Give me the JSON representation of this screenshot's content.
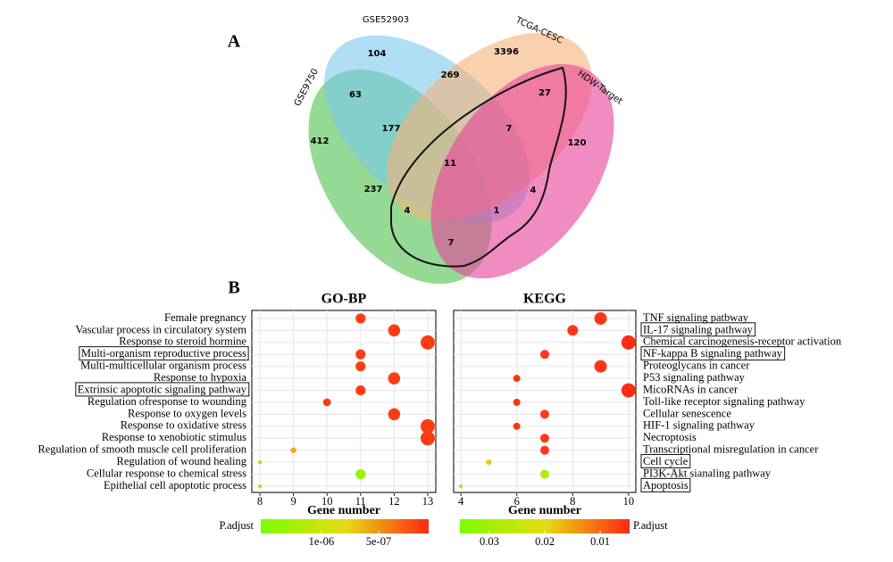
{
  "panel_labels": [
    "A",
    "B"
  ],
  "chart_data": [
    {
      "type": "venn",
      "sets": [
        {
          "name": "GSE9750",
          "color": "#4cc04c"
        },
        {
          "name": "GSE52903",
          "color": "#7cc8ee"
        },
        {
          "name": "TCGA-CESC",
          "color": "#f5b27a"
        },
        {
          "name": "HDW-Target",
          "color": "#e8409a"
        }
      ],
      "values": [
        412,
        104,
        3396,
        120,
        63,
        269,
        27,
        177,
        7,
        11,
        237,
        4,
        4,
        1,
        7
      ]
    },
    {
      "type": "dot",
      "title": "GO-BP",
      "xlabel": "Gene number",
      "categories": [
        "Female pregnancy",
        "Vascular process in circulatory system",
        "Response to steroid hormine",
        "Multi-organism reproductive process",
        "Multi-multicellular organism process",
        "Response to hypoxia",
        "Extrinsic apoptotic signaling pathway",
        "Regulation ofresponse to wounding",
        "Response to oxygen levels",
        "Response to oxidative stress",
        "Response to xenobiotic stimulus",
        "Regulation of smooth muscle cell proliferation",
        "Regulation of wound healing",
        "Cellular response to chemical stress",
        "Epithelial cell apoptotic process"
      ],
      "values": [
        11,
        12,
        13,
        11,
        11,
        12,
        11,
        10,
        12,
        13,
        13,
        9,
        8,
        11,
        8
      ],
      "color_values": [
        1.5e-07,
        1.5e-07,
        1.5e-07,
        1.5e-07,
        1.5e-07,
        1.5e-07,
        1.5e-07,
        1.5e-07,
        1.5e-07,
        1.5e-07,
        1.5e-07,
        6e-07,
        1.4e-06,
        1.3e-06,
        1.4e-06
      ],
      "boxed": [
        3,
        6
      ],
      "xlim": [
        7.76,
        13.24
      ],
      "xticks": [
        8,
        9,
        10,
        11,
        12,
        13
      ],
      "colorbar": {
        "label": "P.adjust",
        "lim": [
          1.53e-06,
          6.3e-08
        ],
        "ticks": [
          {
            "value": 1e-06,
            "label": "1e-06"
          },
          {
            "value": 5e-07,
            "label": "5e-07"
          }
        ]
      }
    },
    {
      "type": "dot",
      "title": "KEGG",
      "xlabel": "Gene number",
      "categories": [
        "TNF signaling patbway",
        "IL-17 signaling pathway",
        "Chemical carcinogenesis-receptor activation",
        "NF-kappa B signaling pathway",
        "Proteoglycans in cancer",
        "P53 signaling pathway",
        "MicoRNAs in cancer",
        "Toll-like receptor signaling pathway",
        "Cellular senescence",
        "HIF-1 signaling pathway",
        "Necroptosis",
        "Transcriptional misregulation in cancer",
        "Cell cycle",
        "PI3K-Akt sianaling pathway",
        "Apoptosis"
      ],
      "values": [
        9,
        8,
        10,
        7,
        9,
        6,
        10,
        6,
        7,
        6,
        7,
        7,
        5,
        7,
        4
      ],
      "color_values": [
        0.006,
        0.006,
        0.005,
        0.006,
        0.006,
        0.006,
        0.005,
        0.006,
        0.006,
        0.006,
        0.006,
        0.006,
        0.018,
        0.028,
        0.035
      ],
      "boxed": [
        1,
        3,
        12,
        14
      ],
      "xlim": [
        3.74,
        10.26
      ],
      "xticks": [
        4,
        6,
        8,
        10
      ],
      "colorbar": {
        "label": "P.adjust",
        "lim": [
          0.0353,
          0.0047
        ],
        "ticks": [
          0.03,
          0.02,
          0.01
        ]
      }
    }
  ]
}
